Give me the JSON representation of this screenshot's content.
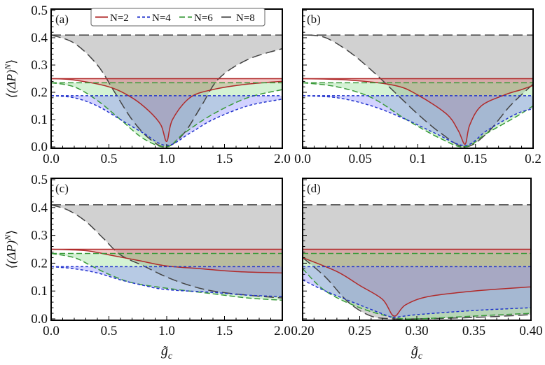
{
  "legend": {
    "position": "top",
    "entries": [
      {
        "name": "N=2",
        "color": "#b02a2a",
        "dash": "solid"
      },
      {
        "name": "N=4",
        "color": "#2233cc",
        "dash": "short-dash"
      },
      {
        "name": "N=6",
        "color": "#3a9a3a",
        "dash": "dash"
      },
      {
        "name": "N=8",
        "color": "#444444",
        "dash": "long-dash"
      }
    ]
  },
  "fill_colors": {
    "N=2": "#e06a6a",
    "N=4": "#8a8aff",
    "N=6": "#8fdc8f",
    "N=8": "#9a9a9a"
  },
  "chart_data": [
    {
      "panel": "(a)",
      "type": "area",
      "xlim": [
        0,
        2
      ],
      "ylim": [
        0,
        0.5
      ],
      "grid": false,
      "ylabel": "⟨(ΔP)^N⟩",
      "xlabel": "",
      "xticks": [
        0,
        0.5,
        1,
        1.5,
        2
      ],
      "xtick_labels": [
        "0.0",
        "0.5",
        "1.0",
        "1.5",
        "2.0"
      ],
      "yticks": [
        0,
        0.1,
        0.2,
        0.3,
        0.4,
        0.5
      ],
      "ytick_labels": [
        "0.0",
        "0.1",
        "0.2",
        "0.3",
        "0.4",
        "0.5"
      ],
      "series": [
        {
          "name": "N=8",
          "upper": 0.41,
          "lower": {
            "x": [
              0,
              0.2,
              0.4,
              0.55,
              0.7,
              0.85,
              1.0,
              1.15,
              1.3,
              1.45,
              1.7,
              2.0
            ],
            "y": [
              0.41,
              0.38,
              0.3,
              0.2,
              0.1,
              0.03,
              0,
              0.05,
              0.15,
              0.25,
              0.32,
              0.36
            ]
          }
        },
        {
          "name": "N=2",
          "upper": 0.25,
          "lower": {
            "x": [
              0,
              0.2,
              0.5,
              0.7,
              0.85,
              0.95,
              1.0,
              1.05,
              1.2,
              1.4,
              1.7,
              2.0
            ],
            "y": [
              0.25,
              0.245,
              0.22,
              0.18,
              0.13,
              0.08,
              0.02,
              0.1,
              0.18,
              0.21,
              0.23,
              0.24
            ]
          }
        },
        {
          "name": "N=6",
          "upper": 0.235,
          "lower": {
            "x": [
              0,
              0.2,
              0.4,
              0.6,
              0.8,
              1.0,
              1.15,
              1.4,
              1.7,
              2.0
            ],
            "y": [
              0.235,
              0.22,
              0.17,
              0.1,
              0.03,
              0,
              0.05,
              0.12,
              0.18,
              0.21
            ]
          }
        },
        {
          "name": "N=4",
          "upper": 0.1875,
          "lower": {
            "x": [
              0,
              0.2,
              0.4,
              0.6,
              0.8,
              1.0,
              1.2,
              1.4,
              1.7,
              2.0
            ],
            "y": [
              0.1875,
              0.18,
              0.15,
              0.1,
              0.05,
              0.005,
              0.05,
              0.1,
              0.15,
              0.175
            ]
          }
        }
      ]
    },
    {
      "panel": "(b)",
      "type": "area",
      "xlim": [
        0,
        0.2
      ],
      "ylim": [
        0,
        0.5
      ],
      "grid": false,
      "ylabel": "",
      "xlabel": "",
      "xticks": [
        0,
        0.05,
        0.1,
        0.15,
        0.2
      ],
      "xtick_labels": [
        "0.0",
        "0.05",
        "0.1",
        "0.15",
        "0.2"
      ],
      "yticks": [
        0,
        0.1,
        0.2,
        0.3,
        0.4,
        0.5
      ],
      "ytick_labels": [],
      "series": [
        {
          "name": "N=8",
          "upper": 0.41,
          "lower": {
            "x": [
              0.005,
              0.02,
              0.04,
              0.06,
              0.08,
              0.1,
              0.12,
              0.141,
              0.16,
              0.18,
              0.2
            ],
            "y": [
              0.41,
              0.4,
              0.35,
              0.28,
              0.2,
              0.12,
              0.05,
              0,
              0.05,
              0.15,
              0.23
            ]
          }
        },
        {
          "name": "N=2",
          "upper": 0.25,
          "lower": {
            "x": [
              0,
              0.04,
              0.08,
              0.1,
              0.125,
              0.135,
              0.141,
              0.145,
              0.155,
              0.175,
              0.19,
              0.2
            ],
            "y": [
              0.25,
              0.245,
              0.225,
              0.19,
              0.12,
              0.06,
              0.01,
              0.08,
              0.15,
              0.19,
              0.21,
              0.225
            ]
          }
        },
        {
          "name": "N=6",
          "upper": 0.235,
          "lower": {
            "x": [
              0,
              0.03,
              0.06,
              0.09,
              0.12,
              0.141,
              0.16,
              0.185,
              0.2
            ],
            "y": [
              0.235,
              0.22,
              0.18,
              0.1,
              0.03,
              0,
              0.05,
              0.11,
              0.15
            ]
          }
        },
        {
          "name": "N=4",
          "upper": 0.1875,
          "lower": {
            "x": [
              0,
              0.03,
              0.06,
              0.09,
              0.115,
              0.141,
              0.16,
              0.185,
              0.2
            ],
            "y": [
              0.1875,
              0.18,
              0.15,
              0.1,
              0.05,
              0.005,
              0.06,
              0.12,
              0.14
            ]
          }
        }
      ]
    },
    {
      "panel": "(c)",
      "type": "area",
      "xlim": [
        0,
        2
      ],
      "ylim": [
        0,
        0.5
      ],
      "grid": false,
      "ylabel": "⟨(ΔP)^N⟩",
      "xlabel": "g̃_c",
      "xticks": [
        0,
        0.5,
        1,
        1.5,
        2
      ],
      "xtick_labels": [
        "0.0",
        "0.5",
        "1.0",
        "1.5",
        "2.0"
      ],
      "yticks": [
        0,
        0.1,
        0.2,
        0.3,
        0.4,
        0.5
      ],
      "ytick_labels": [
        "0.0",
        "0.1",
        "0.2",
        "0.3",
        "0.4",
        "0.5"
      ],
      "series": [
        {
          "name": "N=8",
          "upper": 0.41,
          "lower": {
            "x": [
              0,
              0.15,
              0.3,
              0.45,
              0.6,
              0.8,
              1.0,
              1.2,
              1.4,
              1.7,
              2.0
            ],
            "y": [
              0.41,
              0.39,
              0.35,
              0.29,
              0.23,
              0.19,
              0.15,
              0.12,
              0.1,
              0.085,
              0.075
            ]
          }
        },
        {
          "name": "N=2",
          "upper": 0.25,
          "lower": {
            "x": [
              0,
              0.3,
              0.5,
              0.75,
              1.0,
              1.3,
              1.6,
              2.0
            ],
            "y": [
              0.25,
              0.245,
              0.23,
              0.21,
              0.19,
              0.18,
              0.17,
              0.165
            ]
          }
        },
        {
          "name": "N=6",
          "upper": 0.235,
          "lower": {
            "x": [
              0,
              0.2,
              0.35,
              0.5,
              0.7,
              1.0,
              1.4,
              1.7,
              2.0
            ],
            "y": [
              0.235,
              0.22,
              0.19,
              0.16,
              0.13,
              0.11,
              0.09,
              0.075,
              0.067
            ]
          }
        },
        {
          "name": "N=4",
          "upper": 0.1875,
          "lower": {
            "x": [
              0,
              0.2,
              0.4,
              0.6,
              0.8,
              1.0,
              1.4,
              1.7,
              2.0
            ],
            "y": [
              0.1875,
              0.18,
              0.165,
              0.14,
              0.12,
              0.105,
              0.095,
              0.085,
              0.08
            ]
          }
        }
      ]
    },
    {
      "panel": "(d)",
      "type": "area",
      "xlim": [
        0.2,
        0.4
      ],
      "ylim": [
        0,
        0.5
      ],
      "grid": false,
      "ylabel": "",
      "xlabel": "g̃_c",
      "xticks": [
        0.2,
        0.25,
        0.3,
        0.35,
        0.4
      ],
      "xtick_labels": [
        "0.20",
        "0.25",
        "0.30",
        "0.35",
        "0.40"
      ],
      "yticks": [
        0,
        0.1,
        0.2,
        0.3,
        0.4,
        0.5
      ],
      "ytick_labels": [],
      "series": [
        {
          "name": "N=8",
          "upper": 0.41,
          "lower": {
            "x": [
              0.2,
              0.22,
              0.24,
              0.26,
              0.28,
              0.3,
              0.35,
              0.4
            ],
            "y": [
              0.22,
              0.15,
              0.06,
              0.01,
              0,
              0,
              0.005,
              0.015
            ]
          }
        },
        {
          "name": "N=2",
          "upper": 0.25,
          "lower": {
            "x": [
              0.2,
              0.23,
              0.25,
              0.27,
              0.28,
              0.29,
              0.31,
              0.35,
              0.4
            ],
            "y": [
              0.22,
              0.17,
              0.12,
              0.07,
              0.01,
              0.05,
              0.08,
              0.1,
              0.115
            ]
          }
        },
        {
          "name": "N=6",
          "upper": 0.235,
          "lower": {
            "x": [
              0.2,
              0.22,
              0.25,
              0.28,
              0.3,
              0.35,
              0.4
            ],
            "y": [
              0.18,
              0.1,
              0.04,
              0.005,
              0,
              0.01,
              0.02
            ]
          }
        },
        {
          "name": "N=4",
          "upper": 0.1875,
          "lower": {
            "x": [
              0.2,
              0.22,
              0.25,
              0.275,
              0.28,
              0.3,
              0.35,
              0.4
            ],
            "y": [
              0.14,
              0.1,
              0.05,
              0.01,
              0.005,
              0.015,
              0.03,
              0.04
            ]
          }
        }
      ]
    }
  ]
}
